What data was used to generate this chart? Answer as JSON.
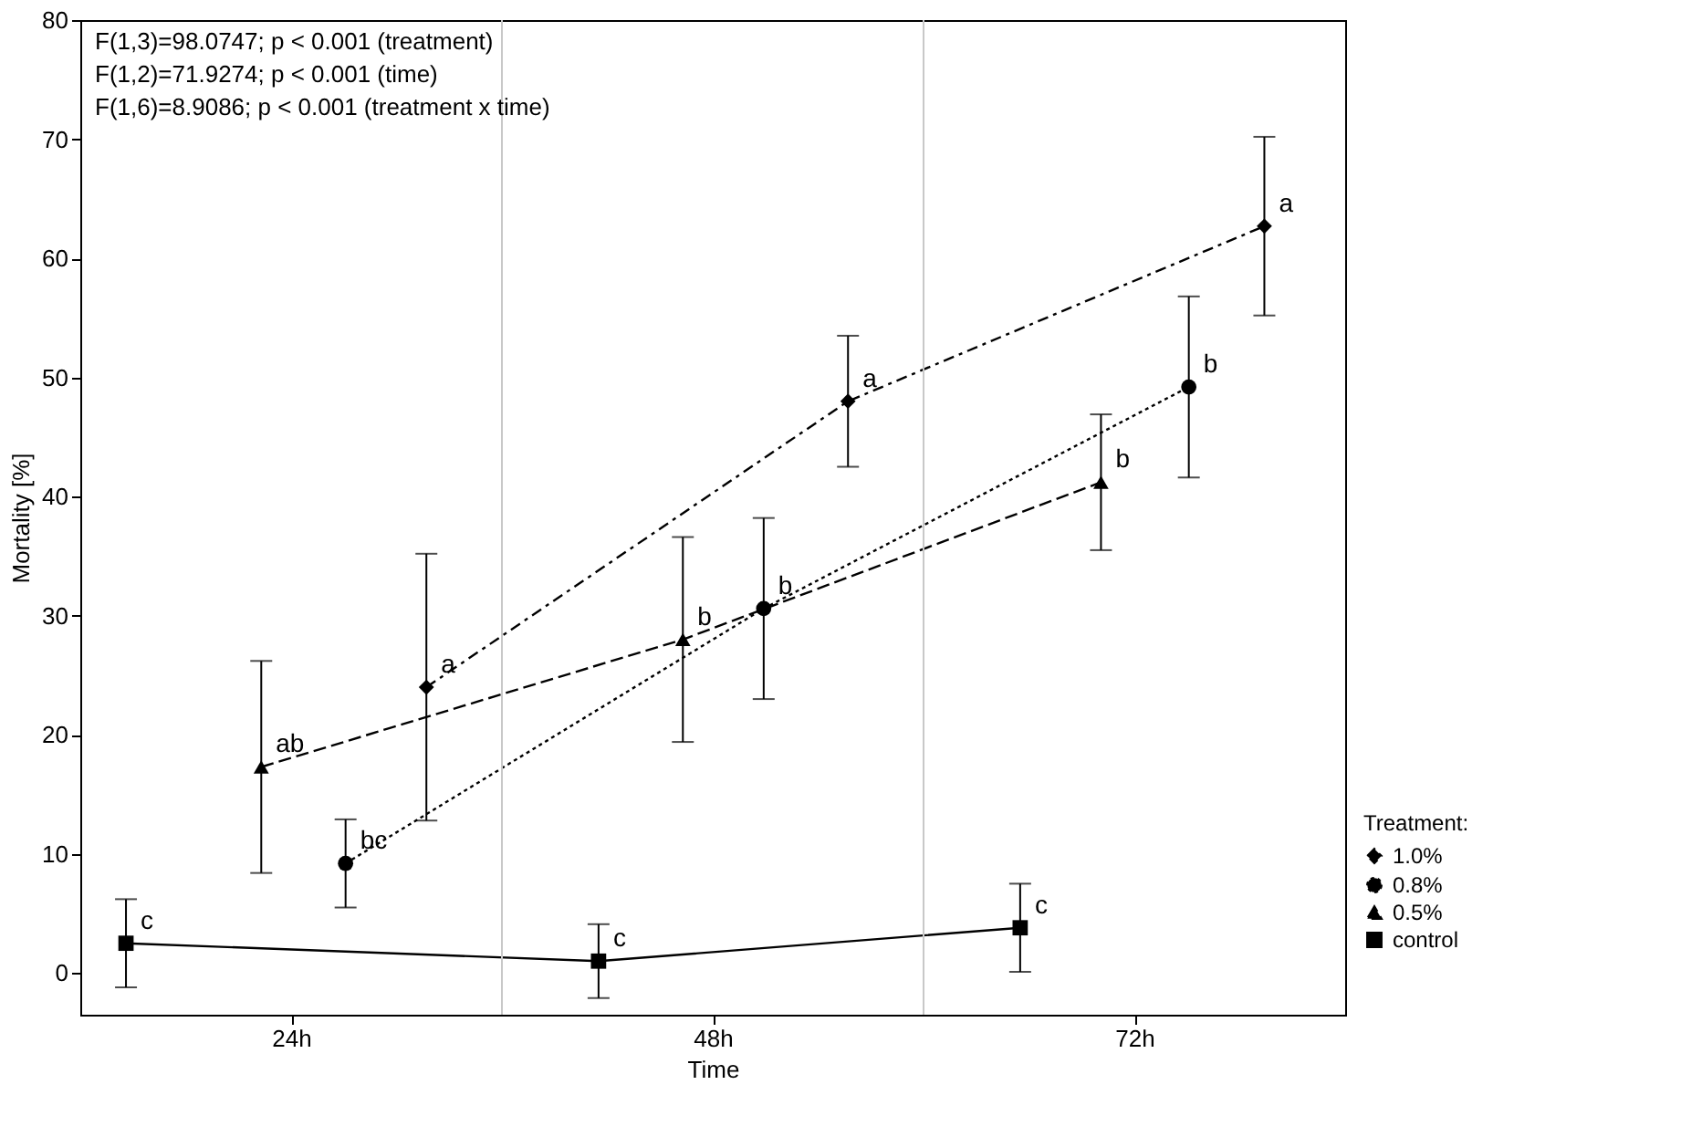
{
  "chart_data": {
    "type": "line",
    "xlabel": "Time",
    "ylabel": "Mortality [%]",
    "legend_title": "Treatment:",
    "legend": "bottom right",
    "xlim": [
      12,
      84
    ],
    "xticks": [
      {
        "value": 24,
        "label": "24h"
      },
      {
        "value": 48,
        "label": "48h"
      },
      {
        "value": 72,
        "label": "72h"
      }
    ],
    "ylim": [
      -3.5,
      80
    ],
    "yticks": [
      0,
      10,
      20,
      30,
      40,
      50,
      60,
      70,
      80
    ],
    "ref_lines": [
      {
        "axis": "x",
        "value": 36,
        "label": null,
        "color": "#c8c8c8"
      },
      {
        "axis": "x",
        "value": 60,
        "label": null,
        "color": "#c8c8c8"
      }
    ],
    "series": [
      {
        "name": "1.0%",
        "color": "#000000",
        "marker": "diamond",
        "line_style": "dashdot",
        "x": [
          31.7,
          55.7,
          79.4
        ],
        "values": [
          24,
          48,
          62.7
        ],
        "errors": [
          11.2,
          5.5,
          7.5
        ],
        "value_labels": [
          "a",
          "a",
          "a"
        ]
      },
      {
        "name": "0.8%",
        "color": "#000000",
        "marker": "circle",
        "line_style": "dotted",
        "x": [
          27.1,
          50.9,
          75.1
        ],
        "values": [
          9.2,
          30.6,
          49.2
        ],
        "errors": [
          3.7,
          7.6,
          7.6
        ],
        "value_labels": [
          "bc",
          "b",
          "b"
        ]
      },
      {
        "name": "0.5%",
        "color": "#000000",
        "marker": "triangle",
        "line_style": "dashed",
        "x": [
          22.3,
          46.3,
          70.1
        ],
        "values": [
          17.3,
          28,
          41.2
        ],
        "errors": [
          8.9,
          8.6,
          5.7
        ],
        "value_labels": [
          "ab",
          "b",
          "b"
        ]
      },
      {
        "name": "control",
        "color": "#000000",
        "marker": "square",
        "line_style": "solid",
        "x": [
          14.6,
          41.5,
          65.5
        ],
        "values": [
          2.5,
          1.0,
          3.8
        ],
        "errors": [
          3.7,
          3.1,
          3.7
        ],
        "value_labels": [
          "c",
          "c",
          "c"
        ]
      }
    ],
    "annotations": [
      "F(1,3)=98.0747; p < 0.001 (treatment)",
      "F(1,2)=71.9274; p < 0.001 (time)",
      "F(1,6)=8.9086; p < 0.001 (treatment x time)"
    ]
  }
}
